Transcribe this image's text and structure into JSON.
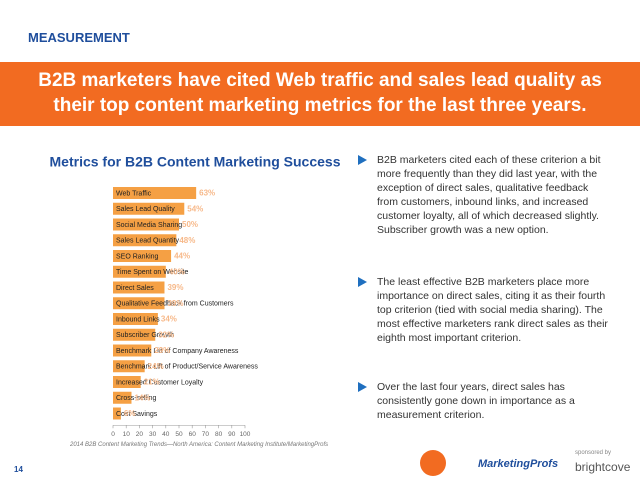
{
  "section": "MEASUREMENT",
  "headline": "B2B marketers have cited Web traffic and sales lead quality as their top content marketing metrics for the last three years.",
  "chart_data": {
    "type": "bar",
    "orientation": "horizontal",
    "title": "Metrics for B2B Content Marketing Success",
    "categories": [
      "Web Traffic",
      "Sales Lead Quality",
      "Social Media Sharing",
      "Sales Lead Quantity",
      "SEO Ranking",
      "Time Spent on Website",
      "Direct Sales",
      "Qualitative Feedback from Customers",
      "Inbound Links",
      "Subscriber Growth",
      "Benchmark Lift of Company Awareness",
      "Benchmark Lift of Product/Service Awareness",
      "Increased Customer Loyalty",
      "Cross-selling",
      "Cost Savings"
    ],
    "values": [
      63,
      54,
      50,
      48,
      44,
      40,
      39,
      39,
      34,
      32,
      29,
      24,
      21,
      14,
      6
    ],
    "value_labels": [
      "63%",
      "54%",
      "50%",
      "48%",
      "44%",
      "40%",
      "39%",
      "39%",
      "34%",
      "32%",
      "29%",
      "24%",
      "21%",
      "14%",
      "6%"
    ],
    "color": "#f5a044",
    "xlim": [
      0,
      100
    ],
    "xticks": [
      0,
      10,
      20,
      30,
      40,
      50,
      60,
      70,
      80,
      90,
      100
    ]
  },
  "source": "2014 B2B Content Marketing Trends—North America: Content Marketing Institute/MarketingProfs",
  "bullets": [
    "B2B marketers cited each of these criterion a bit more frequently than they did last year, with the exception of direct sales, qualitative feedback from customers, inbound links, and increased customer loyalty, all of which decreased slightly. Subscriber growth was a new option.",
    "The least effective B2B marketers place more importance on direct sales, citing it as their fourth top criterion (tied with social media sharing). The most effective marketers rank direct sales as their eighth most important criterion.",
    "Over the last four years, direct sales has consistently gone down in importance as a measurement criterion."
  ],
  "page_number": "14",
  "logos": [
    "MarketingProfs",
    "sponsored by",
    "brightcove"
  ]
}
